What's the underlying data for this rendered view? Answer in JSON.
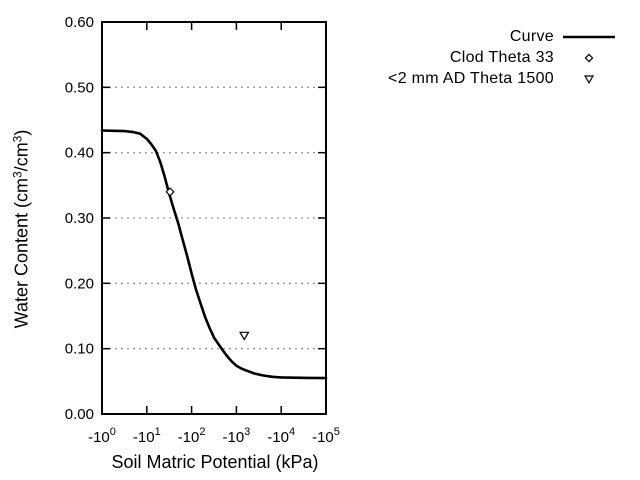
{
  "figure": {
    "background": "#ffffff",
    "text_color": "#000000",
    "grid_color": "#999999",
    "curve_color": "#000000"
  },
  "axes": {
    "x": {
      "title": "Soil Matric Potential (kPa)",
      "scale": "negative log10, decades 0 to 5",
      "ticks": [
        {
          "base": "-10",
          "exp": "0",
          "decade": 0
        },
        {
          "base": "-10",
          "exp": "1",
          "decade": 1
        },
        {
          "base": "-10",
          "exp": "2",
          "decade": 2
        },
        {
          "base": "-10",
          "exp": "3",
          "decade": 3
        },
        {
          "base": "-10",
          "exp": "4",
          "decade": 4
        },
        {
          "base": "-10",
          "exp": "5",
          "decade": 5
        }
      ]
    },
    "y": {
      "title": "Water Content (cm³/cm³)",
      "title_parts": [
        {
          "type": "text",
          "value": "Water Content (cm"
        },
        {
          "type": "sup",
          "value": "3"
        },
        {
          "type": "text",
          "value": "/cm"
        },
        {
          "type": "sup",
          "value": "3"
        },
        {
          "type": "text",
          "value": ")"
        }
      ],
      "min": 0.0,
      "max": 0.6,
      "ticks": [
        {
          "label": "0.00",
          "value": 0.0
        },
        {
          "label": "0.10",
          "value": 0.1
        },
        {
          "label": "0.20",
          "value": 0.2
        },
        {
          "label": "0.30",
          "value": 0.3
        },
        {
          "label": "0.40",
          "value": 0.4
        },
        {
          "label": "0.50",
          "value": 0.5
        },
        {
          "label": "0.60",
          "value": 0.6
        }
      ],
      "grid_values": [
        0.1,
        0.2,
        0.3,
        0.4,
        0.5
      ]
    }
  },
  "legend": {
    "position": "top-right",
    "items": [
      {
        "label": "Curve",
        "marker": "line"
      },
      {
        "label": "Clod Theta 33",
        "marker": "diamond-open"
      },
      {
        "label": "<2 mm AD Theta 1500",
        "marker": "triangle-down-open"
      }
    ]
  },
  "chart_data": {
    "type": "line",
    "title": "",
    "xlabel": "Soil Matric Potential (kPa)",
    "ylabel": "Water Content (cm3/cm3)",
    "x_scale": "log10 of |kPa|, axis shows -10^0 to -10^5",
    "xlim_decades": [
      0,
      5
    ],
    "ylim": [
      0.0,
      0.6
    ],
    "grid": "horizontal dotted gridlines at 0.10 steps",
    "legend_position": "outside top-right",
    "series": [
      {
        "name": "Curve",
        "type": "line",
        "color": "#000000",
        "points_decade_theta": [
          [
            0.0,
            0.434
          ],
          [
            0.25,
            0.4335
          ],
          [
            0.5,
            0.433
          ],
          [
            0.7,
            0.4315
          ],
          [
            0.85,
            0.429
          ],
          [
            1.0,
            0.421
          ],
          [
            1.1,
            0.413
          ],
          [
            1.2,
            0.403
          ],
          [
            1.3,
            0.386
          ],
          [
            1.4,
            0.363
          ],
          [
            1.5,
            0.337
          ],
          [
            1.6,
            0.314
          ],
          [
            1.7,
            0.292
          ],
          [
            1.8,
            0.267
          ],
          [
            1.9,
            0.242
          ],
          [
            2.0,
            0.215
          ],
          [
            2.1,
            0.19
          ],
          [
            2.2,
            0.169
          ],
          [
            2.3,
            0.149
          ],
          [
            2.4,
            0.132
          ],
          [
            2.5,
            0.117
          ],
          [
            2.6,
            0.107
          ],
          [
            2.7,
            0.097
          ],
          [
            2.8,
            0.088
          ],
          [
            2.9,
            0.08
          ],
          [
            3.0,
            0.074
          ],
          [
            3.1,
            0.07
          ],
          [
            3.2,
            0.067
          ],
          [
            3.4,
            0.062
          ],
          [
            3.6,
            0.059
          ],
          [
            3.8,
            0.057
          ],
          [
            4.0,
            0.056
          ],
          [
            4.3,
            0.0555
          ],
          [
            4.6,
            0.0552
          ],
          [
            5.0,
            0.055
          ]
        ]
      },
      {
        "name": "Clod Theta 33",
        "type": "scatter",
        "marker": "diamond-open",
        "color": "#000000",
        "points_kpa_theta": [
          [
            -33,
            0.34
          ]
        ]
      },
      {
        "name": "<2 mm AD Theta 1500",
        "type": "scatter",
        "marker": "triangle-down-open",
        "color": "#000000",
        "points_kpa_theta": [
          [
            -1500,
            0.12
          ]
        ]
      }
    ]
  }
}
